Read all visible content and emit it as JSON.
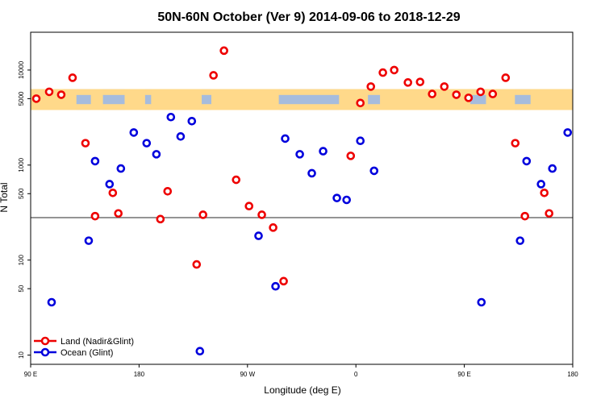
{
  "chart_data": {
    "type": "scatter",
    "title": "50N-60N October (Ver 9)   2014-09-06 to 2018-12-29",
    "xlabel": "Longitude (deg E)",
    "ylabel": "N Total",
    "x_scale": "linear",
    "y_scale": "log",
    "xlim": [
      90,
      540
    ],
    "ylim": [
      8,
      25000
    ],
    "x_ticks": [
      {
        "value": 90,
        "label": "90 E"
      },
      {
        "value": 180,
        "label": "180"
      },
      {
        "value": 270,
        "label": "90 W"
      },
      {
        "value": 360,
        "label": "0"
      },
      {
        "value": 450,
        "label": "90 E"
      },
      {
        "value": 540,
        "label": "180"
      }
    ],
    "y_ticks": [
      {
        "value": 10,
        "label": "10"
      },
      {
        "value": 50,
        "label": "50"
      },
      {
        "value": 100,
        "label": "100"
      },
      {
        "value": 500,
        "label": "500"
      },
      {
        "value": 1000,
        "label": "1000"
      },
      {
        "value": 5000,
        "label": "5000"
      },
      {
        "value": 10000,
        "label": "10000"
      }
    ],
    "reference_line": {
      "y": 280,
      "color": "#555555"
    },
    "map_band": {
      "y_range": [
        3800,
        6300
      ],
      "ocean_color": "#a6bcdd",
      "land_color": "#ffd98a"
    },
    "legend": {
      "position": "bottom-left"
    },
    "series": [
      {
        "name": "Land (Nadir&Glint)",
        "color": "#ee0000",
        "points": [
          {
            "x": 94.7,
            "y": 5000
          },
          {
            "x": 105.4,
            "y": 5900
          },
          {
            "x": 115.4,
            "y": 5500
          },
          {
            "x": 124.8,
            "y": 8300
          },
          {
            "x": 135.5,
            "y": 1700
          },
          {
            "x": 143.5,
            "y": 290
          },
          {
            "x": 158.2,
            "y": 510
          },
          {
            "x": 162.8,
            "y": 310
          },
          {
            "x": 197.7,
            "y": 270
          },
          {
            "x": 203.7,
            "y": 530
          },
          {
            "x": 227.8,
            "y": 90
          },
          {
            "x": 233.1,
            "y": 300
          },
          {
            "x": 241.8,
            "y": 8800
          },
          {
            "x": 250.5,
            "y": 16000
          },
          {
            "x": 260.6,
            "y": 700
          },
          {
            "x": 271.3,
            "y": 370
          },
          {
            "x": 281.9,
            "y": 300
          },
          {
            "x": 291.3,
            "y": 220
          },
          {
            "x": 300.0,
            "y": 60
          },
          {
            "x": 355.7,
            "y": 1250
          },
          {
            "x": 363.7,
            "y": 4500
          },
          {
            "x": 372.4,
            "y": 6700
          },
          {
            "x": 382.4,
            "y": 9400
          },
          {
            "x": 391.8,
            "y": 10000
          },
          {
            "x": 403.2,
            "y": 7400
          },
          {
            "x": 413.3,
            "y": 7500
          },
          {
            "x": 423.3,
            "y": 5600
          },
          {
            "x": 433.4,
            "y": 6700
          },
          {
            "x": 443.4,
            "y": 5500
          },
          {
            "x": 453.5,
            "y": 5100
          },
          {
            "x": 463.5,
            "y": 5900
          },
          {
            "x": 473.6,
            "y": 5600
          },
          {
            "x": 484.3,
            "y": 8300
          },
          {
            "x": 492.3,
            "y": 1700
          },
          {
            "x": 500.3,
            "y": 290
          },
          {
            "x": 516.4,
            "y": 510
          },
          {
            "x": 520.4,
            "y": 310
          }
        ]
      },
      {
        "name": "Ocean (Glint)",
        "color": "#0000dd",
        "points": [
          {
            "x": 107.4,
            "y": 36
          },
          {
            "x": 138.2,
            "y": 160
          },
          {
            "x": 143.5,
            "y": 1100
          },
          {
            "x": 155.5,
            "y": 630
          },
          {
            "x": 164.9,
            "y": 920
          },
          {
            "x": 175.6,
            "y": 2200
          },
          {
            "x": 186.3,
            "y": 1700
          },
          {
            "x": 194.4,
            "y": 1300
          },
          {
            "x": 206.4,
            "y": 3200
          },
          {
            "x": 214.5,
            "y": 2000
          },
          {
            "x": 223.8,
            "y": 2900
          },
          {
            "x": 230.5,
            "y": 11
          },
          {
            "x": 279.2,
            "y": 180
          },
          {
            "x": 293.3,
            "y": 53
          },
          {
            "x": 301.3,
            "y": 1900
          },
          {
            "x": 313.4,
            "y": 1300
          },
          {
            "x": 323.4,
            "y": 820
          },
          {
            "x": 332.8,
            "y": 1400
          },
          {
            "x": 344.2,
            "y": 450
          },
          {
            "x": 352.3,
            "y": 430
          },
          {
            "x": 363.7,
            "y": 1800
          },
          {
            "x": 375.1,
            "y": 870
          },
          {
            "x": 464.2,
            "y": 36
          },
          {
            "x": 496.3,
            "y": 160
          },
          {
            "x": 501.7,
            "y": 1100
          },
          {
            "x": 513.7,
            "y": 630
          },
          {
            "x": 523.1,
            "y": 920
          },
          {
            "x": 535.8,
            "y": 2200
          }
        ]
      }
    ]
  }
}
